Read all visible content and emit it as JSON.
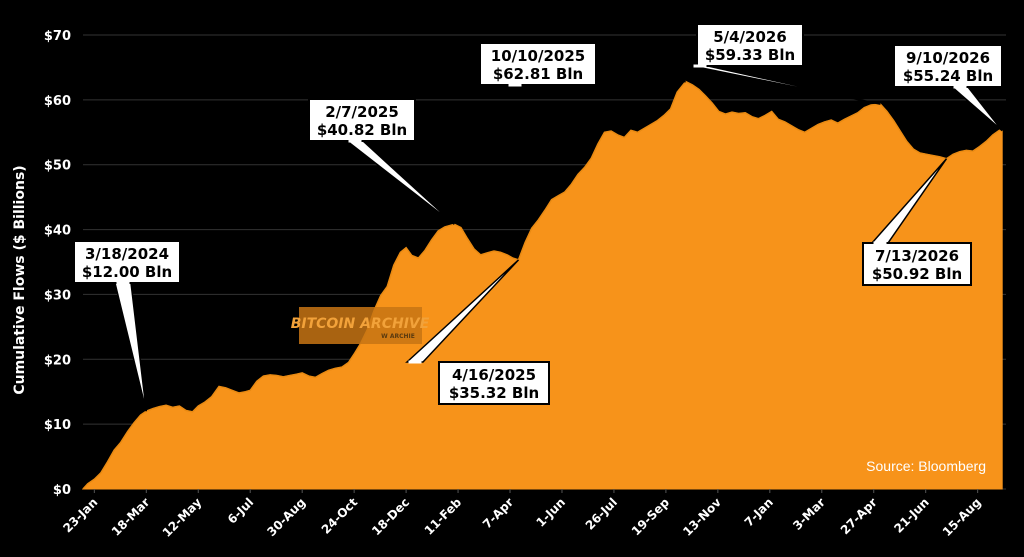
{
  "colors": {
    "background": "#000000",
    "area": "#F7931A",
    "grid": "#333333",
    "text": "#FFFFFF"
  },
  "chart_data": {
    "type": "area",
    "title": "",
    "xlabel": "",
    "ylabel": "Cumulative Flows ($ Billions)",
    "ylim": [
      0,
      70
    ],
    "y_ticks": [
      "$0",
      "$10",
      "$20",
      "$30",
      "$40",
      "$50",
      "$60",
      "$70"
    ],
    "y_tick_values": [
      0,
      10,
      20,
      30,
      40,
      50,
      60,
      70
    ],
    "x_ticks": [
      {
        "label": "23-Jan",
        "date": "2024-01-23"
      },
      {
        "label": "18-Mar",
        "date": "2024-03-18"
      },
      {
        "label": "12-May",
        "date": "2024-05-12"
      },
      {
        "label": "6-Jul",
        "date": "2024-07-06"
      },
      {
        "label": "30-Aug",
        "date": "2024-08-30"
      },
      {
        "label": "24-Oct",
        "date": "2024-10-24"
      },
      {
        "label": "18-Dec",
        "date": "2024-12-18"
      },
      {
        "label": "11-Feb",
        "date": "2025-02-11"
      },
      {
        "label": "7-Apr",
        "date": "2025-04-07"
      },
      {
        "label": "1-Jun",
        "date": "2025-06-01"
      },
      {
        "label": "26-Jul",
        "date": "2025-07-26"
      },
      {
        "label": "19-Sep",
        "date": "2025-09-19"
      },
      {
        "label": "13-Nov",
        "date": "2025-11-13"
      },
      {
        "label": "7-Jan",
        "date": "2026-01-07"
      },
      {
        "label": "3-Mar",
        "date": "2026-03-03"
      },
      {
        "label": "27-Apr",
        "date": "2026-04-27"
      },
      {
        "label": "21-Jun",
        "date": "2026-06-21"
      },
      {
        "label": "15-Aug",
        "date": "2026-08-15"
      }
    ],
    "grid": true,
    "legend": "none",
    "source": "Source: Bloomberg",
    "watermark": {
      "line1": "BITCOIN ARCHIVE",
      "line2": "W ARCHIE"
    },
    "series": [
      {
        "points": [
          [
            "2024-01-11",
            0
          ],
          [
            "2024-01-16",
            0.8
          ],
          [
            "2024-01-23",
            1.5
          ],
          [
            "2024-01-30",
            2.5
          ],
          [
            "2024-02-06",
            4.2
          ],
          [
            "2024-02-13",
            6.0
          ],
          [
            "2024-02-20",
            7.2
          ],
          [
            "2024-02-27",
            8.8
          ],
          [
            "2024-03-05",
            10.2
          ],
          [
            "2024-03-12",
            11.4
          ],
          [
            "2024-03-18",
            12.0
          ],
          [
            "2024-03-25",
            12.4
          ],
          [
            "2024-04-01",
            12.7
          ],
          [
            "2024-04-08",
            12.9
          ],
          [
            "2024-04-15",
            12.6
          ],
          [
            "2024-04-22",
            12.8
          ],
          [
            "2024-04-29",
            12.1
          ],
          [
            "2024-05-06",
            11.9
          ],
          [
            "2024-05-12",
            12.8
          ],
          [
            "2024-05-19",
            13.4
          ],
          [
            "2024-05-26",
            14.2
          ],
          [
            "2024-06-03",
            15.8
          ],
          [
            "2024-06-10",
            15.6
          ],
          [
            "2024-06-17",
            15.2
          ],
          [
            "2024-06-24",
            14.8
          ],
          [
            "2024-07-01",
            15.0
          ],
          [
            "2024-07-06",
            15.2
          ],
          [
            "2024-07-13",
            16.6
          ],
          [
            "2024-07-20",
            17.4
          ],
          [
            "2024-07-27",
            17.6
          ],
          [
            "2024-08-03",
            17.5
          ],
          [
            "2024-08-10",
            17.3
          ],
          [
            "2024-08-17",
            17.5
          ],
          [
            "2024-08-24",
            17.7
          ],
          [
            "2024-08-30",
            17.9
          ],
          [
            "2024-09-06",
            17.4
          ],
          [
            "2024-09-13",
            17.2
          ],
          [
            "2024-09-20",
            17.8
          ],
          [
            "2024-09-27",
            18.3
          ],
          [
            "2024-10-04",
            18.6
          ],
          [
            "2024-10-11",
            18.8
          ],
          [
            "2024-10-18",
            19.5
          ],
          [
            "2024-10-24",
            20.8
          ],
          [
            "2024-10-31",
            22.5
          ],
          [
            "2024-11-07",
            24.6
          ],
          [
            "2024-11-14",
            27.5
          ],
          [
            "2024-11-21",
            29.8
          ],
          [
            "2024-11-28",
            31.2
          ],
          [
            "2024-12-05",
            34.5
          ],
          [
            "2024-12-12",
            36.5
          ],
          [
            "2024-12-18",
            37.2
          ],
          [
            "2024-12-24",
            36.0
          ],
          [
            "2024-12-31",
            35.6
          ],
          [
            "2025-01-07",
            36.8
          ],
          [
            "2025-01-14",
            38.4
          ],
          [
            "2025-01-21",
            39.8
          ],
          [
            "2025-01-28",
            40.4
          ],
          [
            "2025-02-07",
            40.82
          ],
          [
            "2025-02-14",
            40.3
          ],
          [
            "2025-02-21",
            38.6
          ],
          [
            "2025-02-28",
            37.0
          ],
          [
            "2025-03-07",
            36.1
          ],
          [
            "2025-03-14",
            36.4
          ],
          [
            "2025-03-21",
            36.7
          ],
          [
            "2025-03-28",
            36.5
          ],
          [
            "2025-04-04",
            36.1
          ],
          [
            "2025-04-10",
            35.6
          ],
          [
            "2025-04-16",
            35.32
          ],
          [
            "2025-04-23",
            38.0
          ],
          [
            "2025-04-30",
            40.2
          ],
          [
            "2025-05-07",
            41.5
          ],
          [
            "2025-05-14",
            43.0
          ],
          [
            "2025-05-21",
            44.6
          ],
          [
            "2025-05-28",
            45.2
          ],
          [
            "2025-06-04",
            45.8
          ],
          [
            "2025-06-11",
            47.0
          ],
          [
            "2025-06-18",
            48.5
          ],
          [
            "2025-06-25",
            49.6
          ],
          [
            "2025-07-02",
            51.0
          ],
          [
            "2025-07-09",
            53.2
          ],
          [
            "2025-07-16",
            55.0
          ],
          [
            "2025-07-23",
            55.2
          ],
          [
            "2025-07-30",
            54.6
          ],
          [
            "2025-08-06",
            54.2
          ],
          [
            "2025-08-13",
            55.3
          ],
          [
            "2025-08-20",
            55.0
          ],
          [
            "2025-08-27",
            55.6
          ],
          [
            "2025-09-03",
            56.2
          ],
          [
            "2025-09-10",
            56.8
          ],
          [
            "2025-09-17",
            57.6
          ],
          [
            "2025-09-24",
            58.6
          ],
          [
            "2025-10-01",
            61.2
          ],
          [
            "2025-10-10",
            62.81
          ],
          [
            "2025-10-17",
            62.3
          ],
          [
            "2025-10-24",
            61.6
          ],
          [
            "2025-10-31",
            60.6
          ],
          [
            "2025-11-07",
            59.5
          ],
          [
            "2025-11-14",
            58.2
          ],
          [
            "2025-11-21",
            57.8
          ],
          [
            "2025-11-28",
            58.1
          ],
          [
            "2025-12-05",
            57.9
          ],
          [
            "2025-12-12",
            58.0
          ],
          [
            "2025-12-19",
            57.4
          ],
          [
            "2025-12-26",
            57.1
          ],
          [
            "2026-01-02",
            57.6
          ],
          [
            "2026-01-09",
            58.2
          ],
          [
            "2026-01-16",
            57.0
          ],
          [
            "2026-01-23",
            56.6
          ],
          [
            "2026-01-30",
            56.0
          ],
          [
            "2026-02-06",
            55.4
          ],
          [
            "2026-02-13",
            55.0
          ],
          [
            "2026-02-20",
            55.6
          ],
          [
            "2026-02-27",
            56.2
          ],
          [
            "2026-03-06",
            56.6
          ],
          [
            "2026-03-13",
            56.9
          ],
          [
            "2026-03-20",
            56.4
          ],
          [
            "2026-03-27",
            57.0
          ],
          [
            "2026-04-03",
            57.5
          ],
          [
            "2026-04-10",
            58.0
          ],
          [
            "2026-04-17",
            58.8
          ],
          [
            "2026-04-24",
            59.2
          ],
          [
            "2026-05-04",
            59.33
          ],
          [
            "2026-05-11",
            58.2
          ],
          [
            "2026-05-18",
            56.8
          ],
          [
            "2026-05-25",
            55.2
          ],
          [
            "2026-06-01",
            53.6
          ],
          [
            "2026-06-08",
            52.4
          ],
          [
            "2026-06-15",
            51.8
          ],
          [
            "2026-06-22",
            51.6
          ],
          [
            "2026-06-29",
            51.4
          ],
          [
            "2026-07-06",
            51.2
          ],
          [
            "2026-07-13",
            50.92
          ],
          [
            "2026-07-20",
            51.6
          ],
          [
            "2026-07-27",
            52.0
          ],
          [
            "2026-08-03",
            52.2
          ],
          [
            "2026-08-10",
            52.1
          ],
          [
            "2026-08-17",
            52.8
          ],
          [
            "2026-08-24",
            53.6
          ],
          [
            "2026-08-31",
            54.6
          ],
          [
            "2026-09-07",
            55.3
          ],
          [
            "2026-09-10",
            55.24
          ]
        ]
      }
    ],
    "annotations": [
      {
        "date": "3/18/2024",
        "value": "$12.00 Bln",
        "x": "2024-03-18",
        "y": 12.0
      },
      {
        "date": "2/7/2025",
        "value": "$40.82 Bln",
        "x": "2025-02-07",
        "y": 40.82
      },
      {
        "date": "4/16/2025",
        "value": "$35.32 Bln",
        "x": "2025-04-16",
        "y": 35.32
      },
      {
        "date": "10/10/2025",
        "value": "$62.81 Bln",
        "x": "2025-10-10",
        "y": 62.81
      },
      {
        "date": "5/4/2026",
        "value": "$59.33 Bln",
        "x": "2026-05-04",
        "y": 59.33
      },
      {
        "date": "7/13/2026",
        "value": "$50.92 Bln",
        "x": "2026-07-13",
        "y": 50.92
      },
      {
        "date": "9/10/2026",
        "value": "$55.24 Bln",
        "x": "2026-09-10",
        "y": 55.24
      }
    ]
  }
}
